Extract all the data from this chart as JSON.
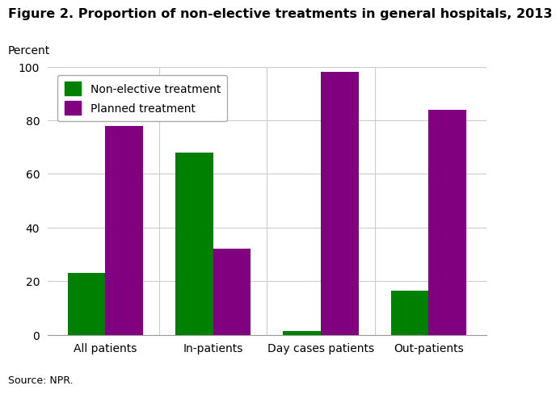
{
  "title": "Figure 2. Proportion of non-elective treatments in general hospitals, 2013",
  "ylabel": "Percent",
  "source": "Source: NPR.",
  "categories": [
    "All patients",
    "In-patients",
    "Day cases patients",
    "Out-patients"
  ],
  "series": [
    {
      "name": "Non-elective treatment",
      "color": "#008000",
      "values": [
        23,
        68,
        1.5,
        16.5
      ]
    },
    {
      "name": "Planned treatment",
      "color": "#800080",
      "values": [
        78,
        32,
        98,
        84
      ]
    }
  ],
  "ylim": [
    0,
    100
  ],
  "yticks": [
    0,
    20,
    40,
    60,
    80,
    100
  ],
  "bar_width": 0.35,
  "background_color": "#ffffff",
  "title_fontsize": 11.5,
  "axis_fontsize": 10,
  "tick_fontsize": 10,
  "legend_fontsize": 10,
  "source_fontsize": 9
}
